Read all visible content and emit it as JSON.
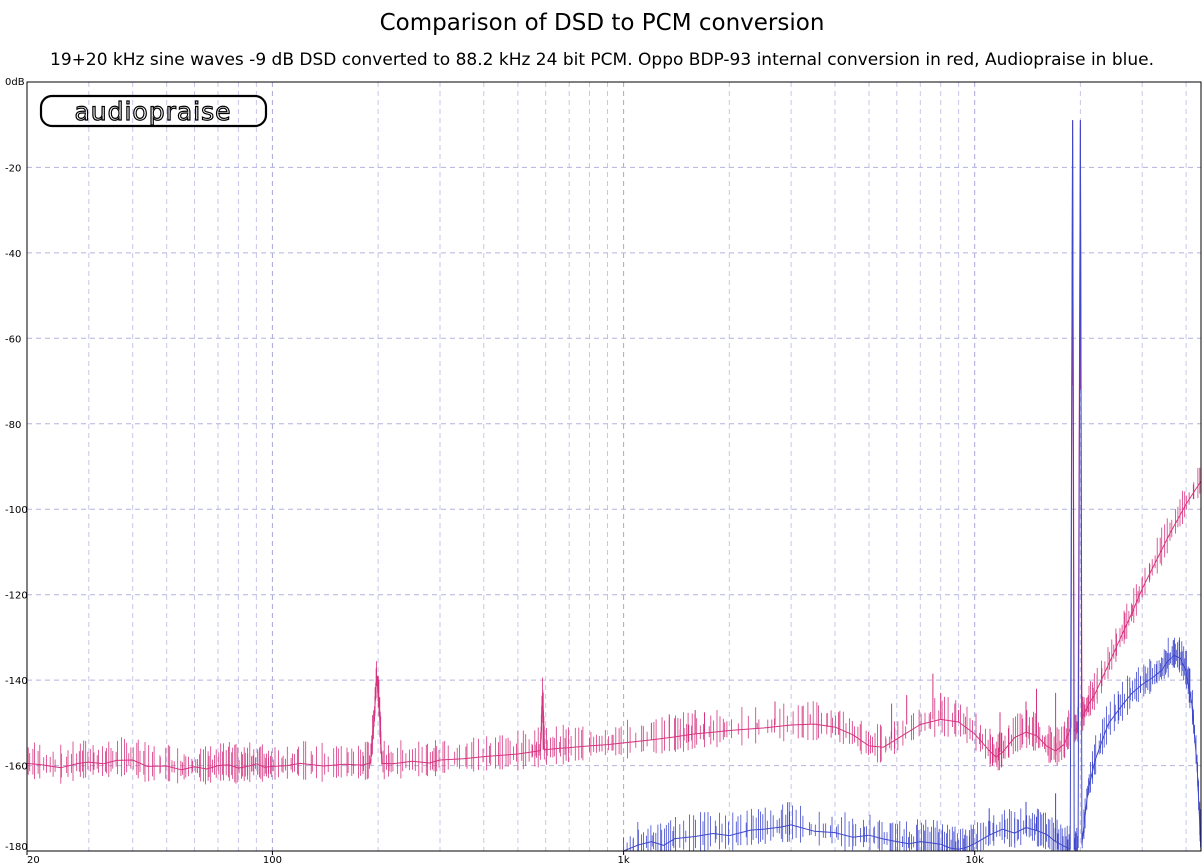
{
  "chart_data": {
    "type": "line",
    "title": "Comparison of DSD to PCM conversion",
    "subtitle": "19+20 kHz sine waves -9 dB DSD converted to 88.2 kHz 24 bit PCM. Oppo BDP-93 internal conversion in red, Audiopraise  in blue.",
    "logo_text": "audiopraise",
    "x_scale": "log",
    "xlim": [
      20,
      44100
    ],
    "ylim": [
      -180,
      0
    ],
    "grid": true,
    "y_ticks": [
      {
        "value": 0,
        "label": "0dB"
      },
      {
        "value": -20,
        "label": "-20"
      },
      {
        "value": -40,
        "label": "-40"
      },
      {
        "value": -60,
        "label": "-60"
      },
      {
        "value": -80,
        "label": "-80"
      },
      {
        "value": -100,
        "label": "-100"
      },
      {
        "value": -120,
        "label": "-120"
      },
      {
        "value": -140,
        "label": "-140"
      },
      {
        "value": -160,
        "label": "-160"
      },
      {
        "value": -180,
        "label": "-180"
      }
    ],
    "x_ticks": [
      {
        "value": 20,
        "label": "20"
      },
      {
        "value": 100,
        "label": "100"
      },
      {
        "value": 1000,
        "label": "1k"
      },
      {
        "value": 10000,
        "label": "10k"
      }
    ],
    "series": [
      {
        "color": "#d6337f",
        "points": [
          [
            20,
            -159.5
          ],
          [
            22,
            -159.8
          ],
          [
            25,
            -160.5
          ],
          [
            28,
            -159.5
          ],
          [
            30,
            -159.2
          ],
          [
            33,
            -159.6
          ],
          [
            36,
            -158.8
          ],
          [
            40,
            -158.7
          ],
          [
            44,
            -160.2
          ],
          [
            50,
            -160.1
          ],
          [
            55,
            -161.0
          ],
          [
            60,
            -160.3
          ],
          [
            65,
            -160.8
          ],
          [
            70,
            -160.0
          ],
          [
            75,
            -159.8
          ],
          [
            80,
            -160.6
          ],
          [
            85,
            -160.2
          ],
          [
            90,
            -159.6
          ],
          [
            95,
            -160.4
          ],
          [
            100,
            -160.2
          ],
          [
            110,
            -160.0
          ],
          [
            120,
            -159.5
          ],
          [
            140,
            -160.1
          ],
          [
            160,
            -159.7
          ],
          [
            180,
            -159.9
          ],
          [
            190,
            -159.4
          ],
          [
            195,
            -149
          ],
          [
            198,
            -139
          ],
          [
            201,
            -145
          ],
          [
            205,
            -159.5
          ],
          [
            220,
            -159.6
          ],
          [
            250,
            -159.0
          ],
          [
            280,
            -159.4
          ],
          [
            300,
            -158.7
          ],
          [
            350,
            -158.4
          ],
          [
            400,
            -157.9
          ],
          [
            450,
            -157.6
          ],
          [
            500,
            -157.3
          ],
          [
            550,
            -156.8
          ],
          [
            580,
            -156.5
          ],
          [
            588,
            -143
          ],
          [
            595,
            -156.3
          ],
          [
            650,
            -156.0
          ],
          [
            700,
            -155.8
          ],
          [
            800,
            -155.4
          ],
          [
            900,
            -155.1
          ],
          [
            1000,
            -154.7
          ],
          [
            1200,
            -154.0
          ],
          [
            1400,
            -153.3
          ],
          [
            1500,
            -152.9
          ],
          [
            1600,
            -152.6
          ],
          [
            1800,
            -152.2
          ],
          [
            2000,
            -151.8
          ],
          [
            2500,
            -151.2
          ],
          [
            3000,
            -150.5
          ],
          [
            3500,
            -150.3
          ],
          [
            4000,
            -151.0
          ],
          [
            4500,
            -152.8
          ],
          [
            5000,
            -155.4
          ],
          [
            5500,
            -155.7
          ],
          [
            6000,
            -153.8
          ],
          [
            7000,
            -150.4
          ],
          [
            8000,
            -149.2
          ],
          [
            9000,
            -149.8
          ],
          [
            10000,
            -152.6
          ],
          [
            11000,
            -156.5
          ],
          [
            11500,
            -158.0
          ],
          [
            12000,
            -156.9
          ],
          [
            13000,
            -153.4
          ],
          [
            14000,
            -152.2
          ],
          [
            15000,
            -153.0
          ],
          [
            16000,
            -155.4
          ],
          [
            17000,
            -156.6
          ],
          [
            18000,
            -155.0
          ],
          [
            18800,
            -151.0
          ],
          [
            19000,
            -9
          ],
          [
            19200,
            -152.0
          ],
          [
            19700,
            -151.0
          ],
          [
            20000,
            -9
          ],
          [
            20200,
            -149.0
          ],
          [
            21000,
            -146.0
          ],
          [
            22000,
            -143.2
          ],
          [
            24000,
            -136.5
          ],
          [
            26000,
            -130.2
          ],
          [
            28000,
            -124.4
          ],
          [
            30000,
            -118.6
          ],
          [
            33000,
            -111.8
          ],
          [
            36000,
            -105.6
          ],
          [
            40000,
            -98.8
          ],
          [
            44100,
            -93.4
          ]
        ],
        "spurs": [
          [
            200,
            -139
          ],
          [
            590,
            -143
          ],
          [
            1200,
            -150
          ],
          [
            1350,
            -148
          ],
          [
            1600,
            -147
          ],
          [
            1700,
            -147.5
          ],
          [
            2400,
            -150
          ],
          [
            2700,
            -145
          ],
          [
            3400,
            -148
          ],
          [
            3800,
            -147.7
          ],
          [
            4100,
            -147.5
          ],
          [
            5800,
            -145.5
          ],
          [
            6400,
            -143.5
          ],
          [
            7600,
            -138.5
          ],
          [
            8000,
            -143
          ],
          [
            9000,
            -147
          ],
          [
            11800,
            -147.5
          ],
          [
            14000,
            -145
          ],
          [
            15000,
            -142
          ],
          [
            17000,
            -143
          ],
          [
            19000,
            -71
          ],
          [
            20000,
            -72
          ]
        ]
      },
      {
        "color": "#3f48cc",
        "points": [
          [
            1000,
            -180
          ],
          [
            1100,
            -178.6
          ],
          [
            1200,
            -177.8
          ],
          [
            1300,
            -178.7
          ],
          [
            1400,
            -177.1
          ],
          [
            1600,
            -176.6
          ],
          [
            1800,
            -175.9
          ],
          [
            2000,
            -176.4
          ],
          [
            2300,
            -175.1
          ],
          [
            2500,
            -174.9
          ],
          [
            2800,
            -174.4
          ],
          [
            3000,
            -173.9
          ],
          [
            3500,
            -175.4
          ],
          [
            4000,
            -175.7
          ],
          [
            4500,
            -176.8
          ],
          [
            5000,
            -176.3
          ],
          [
            5500,
            -177.2
          ],
          [
            6000,
            -177.8
          ],
          [
            6500,
            -178.3
          ],
          [
            7000,
            -177.8
          ],
          [
            7500,
            -178.1
          ],
          [
            8000,
            -178.4
          ],
          [
            8500,
            -179.3
          ],
          [
            9000,
            -179.6
          ],
          [
            9500,
            -179.1
          ],
          [
            10000,
            -178.3
          ],
          [
            11000,
            -176.3
          ],
          [
            12000,
            -174.9
          ],
          [
            13000,
            -175.8
          ],
          [
            14000,
            -174.5
          ],
          [
            15000,
            -175.2
          ],
          [
            16000,
            -176.1
          ],
          [
            17000,
            -177.8
          ],
          [
            18000,
            -178.9
          ],
          [
            18700,
            -179.5
          ],
          [
            19000,
            -9
          ],
          [
            19200,
            -179.6
          ],
          [
            19700,
            -179.2
          ],
          [
            20000,
            -9
          ],
          [
            20200,
            -178.4
          ],
          [
            21000,
            -166.0
          ],
          [
            22000,
            -158.8
          ],
          [
            24000,
            -150.3
          ],
          [
            26000,
            -146.4
          ],
          [
            28000,
            -143.1
          ],
          [
            30000,
            -141.0
          ],
          [
            32000,
            -139.5
          ],
          [
            34000,
            -137.8
          ],
          [
            35500,
            -135.6
          ],
          [
            37000,
            -134.2
          ],
          [
            38500,
            -134.9
          ],
          [
            40000,
            -138.0
          ],
          [
            41500,
            -145.2
          ],
          [
            43000,
            -160.0
          ],
          [
            44100,
            -180
          ]
        ],
        "spurs": [
          [
            11000,
            -170
          ],
          [
            14000,
            -168.5
          ],
          [
            15000,
            -172
          ],
          [
            17000,
            -166.5
          ]
        ]
      }
    ]
  }
}
